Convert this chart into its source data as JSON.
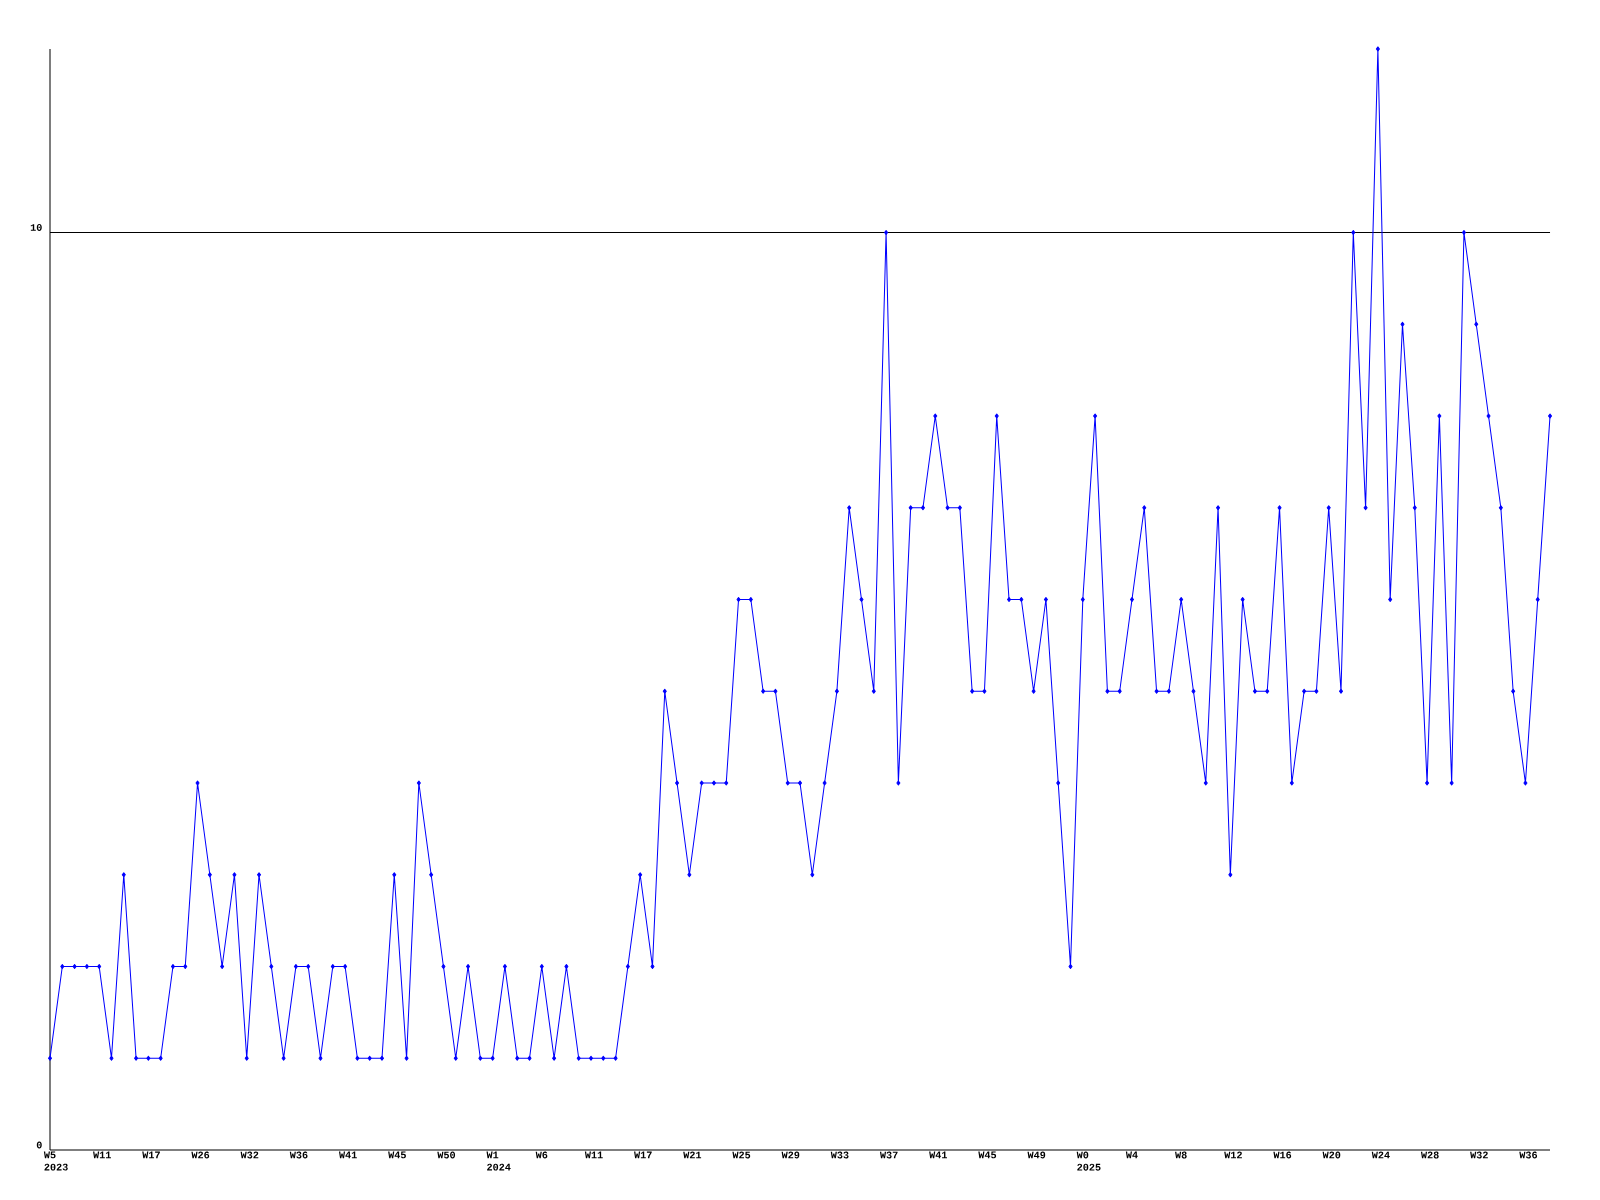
{
  "chart_data": {
    "type": "line",
    "color": "#0000ff",
    "marker": "diamond",
    "line_style": "solid",
    "categories": [
      "W5 2023",
      null,
      null,
      null,
      "W11",
      null,
      null,
      null,
      "W17",
      null,
      null,
      null,
      "W26",
      null,
      null,
      null,
      "W32",
      null,
      null,
      null,
      "W36",
      null,
      null,
      null,
      "W41",
      null,
      null,
      null,
      "W45",
      null,
      null,
      null,
      "W50",
      null,
      null,
      null,
      "W1 2024",
      null,
      null,
      null,
      "W6",
      null,
      null,
      null,
      "W11",
      null,
      null,
      null,
      "W17",
      null,
      null,
      null,
      "W21",
      null,
      null,
      null,
      "W25",
      null,
      null,
      null,
      "W29",
      null,
      null,
      null,
      "W33",
      null,
      null,
      null,
      "W37",
      null,
      null,
      null,
      "W41",
      null,
      null,
      null,
      "W45",
      null,
      null,
      null,
      "W49",
      null,
      null,
      null,
      "W0 2025",
      null,
      null,
      null,
      "W4",
      null,
      null,
      null,
      "W8",
      null,
      null,
      null,
      "W12",
      null,
      null,
      null,
      "W16",
      null,
      null,
      null,
      "W20",
      null,
      null,
      null,
      "W24",
      null,
      null,
      null,
      "W28",
      null,
      null,
      null,
      "W32",
      null,
      null,
      null,
      "W36",
      null,
      null
    ],
    "values": [
      1,
      2,
      2,
      2,
      2,
      1,
      3,
      1,
      1,
      1,
      2,
      2,
      4,
      3,
      2,
      3,
      1,
      3,
      2,
      1,
      2,
      2,
      1,
      2,
      2,
      1,
      1,
      1,
      3,
      1,
      4,
      3,
      2,
      1,
      2,
      1,
      1,
      2,
      1,
      1,
      2,
      1,
      2,
      1,
      1,
      1,
      1,
      2,
      3,
      2,
      5,
      4,
      3,
      4,
      4,
      4,
      6,
      6,
      5,
      5,
      4,
      4,
      3,
      4,
      5,
      7,
      6,
      5,
      10,
      4,
      7,
      7,
      8,
      7,
      7,
      5,
      5,
      8,
      6,
      6,
      5,
      6,
      4,
      2,
      6,
      8,
      5,
      5,
      6,
      7,
      5,
      5,
      6,
      5,
      4,
      7,
      3,
      6,
      5,
      5,
      7,
      4,
      5,
      5,
      7,
      5,
      10,
      7,
      12,
      6,
      9,
      7,
      4,
      8,
      4,
      10,
      9,
      8,
      7,
      5,
      4,
      6,
      8
    ],
    "ylim": [
      0,
      12
    ],
    "yticks": [
      0,
      10
    ],
    "ref_lines": [
      {
        "axis": "y",
        "value": 10,
        "color": "#000000"
      }
    ]
  }
}
